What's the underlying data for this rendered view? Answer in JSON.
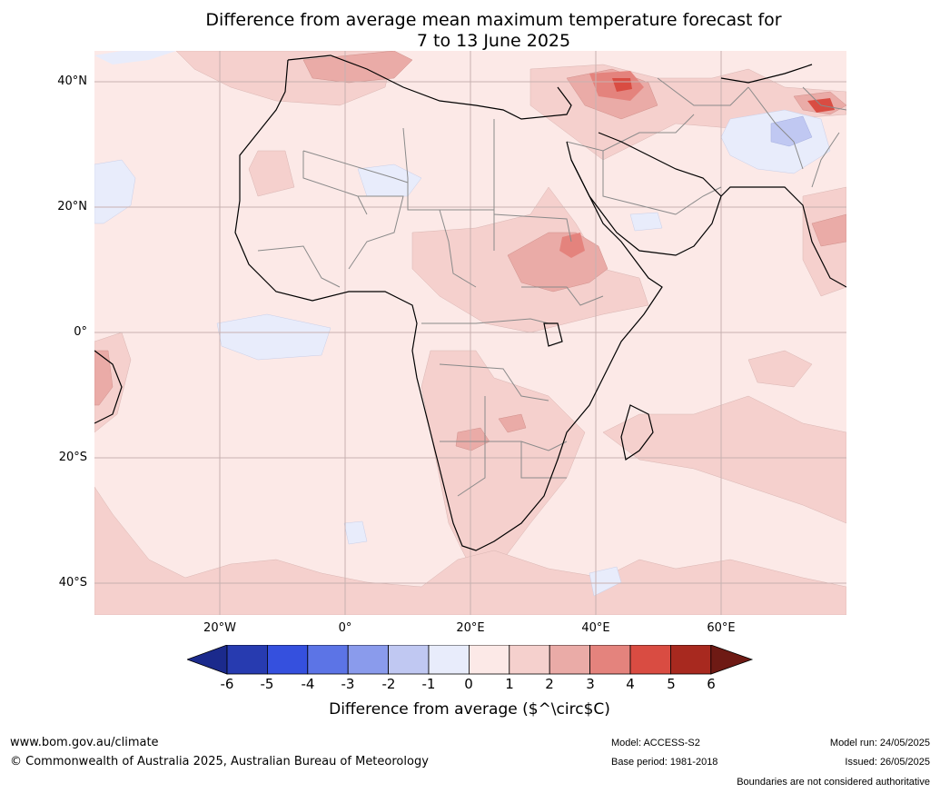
{
  "title": {
    "line1": "Difference from average mean maximum temperature forecast for",
    "line2": "7 to 13 June 2025"
  },
  "axes": {
    "latitude_labels": [
      "40°N",
      "20°N",
      "0°",
      "20°S",
      "40°S"
    ],
    "longitude_labels": [
      "20°W",
      "0°",
      "20°E",
      "40°E",
      "60°E"
    ]
  },
  "colors": {
    "ocean_land_base": "#fce9e7",
    "anomaly_1_2": "#f5d0cd",
    "anomaly_2_3": "#eaaba7",
    "anomaly_3_4": "#e4837d",
    "anomaly_4_5": "#d94c42",
    "anomaly_neg_1_0": "#e8ecfb",
    "anomaly_neg_2_1": "#c0c8f2"
  },
  "colorbar": {
    "ticks": [
      "-6",
      "-5",
      "-4",
      "-3",
      "-2",
      "-1",
      "0",
      "1",
      "2",
      "3",
      "4",
      "5",
      "6"
    ],
    "colors": [
      "#1b2a8c",
      "#273bb0",
      "#3550de",
      "#5c74e6",
      "#8a9bec",
      "#c0c8f2",
      "#e8ecfb",
      "#fce9e7",
      "#f5d0cd",
      "#eaaba7",
      "#e4837d",
      "#d94c42",
      "#a8291f",
      "#6e1a14"
    ],
    "label": "Difference from average ($^\\circ$C)"
  },
  "footer": {
    "website": "www.bom.gov.au/climate",
    "copyright": "© Commonwealth of Australia 2025, Australian Bureau of Meteorology",
    "model": "Model: ACCESS-S2",
    "base_period": "Base period: 1981-2018",
    "model_run": "Model run: 24/05/2025",
    "issued": "Issued: 26/05/2025",
    "disclaimer": "Boundaries are not considered authoritative"
  }
}
